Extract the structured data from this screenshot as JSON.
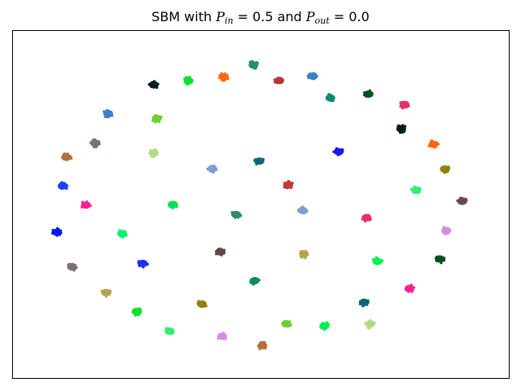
{
  "chart_data": {
    "type": "scatter",
    "title": "SBM with P_in = 0.5 and P_out = 0.0",
    "title_parts": {
      "prefix": "SBM with ",
      "p": "P",
      "in_sub": "in",
      "eq1": " = 0.5 and ",
      "out_sub": "out",
      "eq2": " = 0.0"
    },
    "xlabel": "",
    "ylabel": "",
    "xlim": [
      0,
      1
    ],
    "ylim": [
      0,
      1
    ],
    "axes_ticks": "hidden",
    "grid": false,
    "legend": "none",
    "clusters": [
      {
        "x": 0.485,
        "y": 0.902,
        "color": "#2a8f6a"
      },
      {
        "x": 0.537,
        "y": 0.857,
        "color": "#b8353a"
      },
      {
        "x": 0.605,
        "y": 0.87,
        "color": "#3e7fc8"
      },
      {
        "x": 0.425,
        "y": 0.868,
        "color": "#ff6a10"
      },
      {
        "x": 0.354,
        "y": 0.856,
        "color": "#10e030"
      },
      {
        "x": 0.284,
        "y": 0.845,
        "color": "#051c24"
      },
      {
        "x": 0.192,
        "y": 0.762,
        "color": "#3e7fc8"
      },
      {
        "x": 0.29,
        "y": 0.748,
        "color": "#70cc30"
      },
      {
        "x": 0.166,
        "y": 0.676,
        "color": "#7b7272"
      },
      {
        "x": 0.284,
        "y": 0.648,
        "color": "#b0dc80"
      },
      {
        "x": 0.108,
        "y": 0.636,
        "color": "#b07040"
      },
      {
        "x": 0.1,
        "y": 0.553,
        "color": "#2040ff"
      },
      {
        "x": 0.147,
        "y": 0.498,
        "color": "#ff2090"
      },
      {
        "x": 0.402,
        "y": 0.603,
        "color": "#7aa0cc"
      },
      {
        "x": 0.497,
        "y": 0.625,
        "color": "#086878"
      },
      {
        "x": 0.555,
        "y": 0.556,
        "color": "#c03838"
      },
      {
        "x": 0.64,
        "y": 0.807,
        "color": "#0d8a6a"
      },
      {
        "x": 0.717,
        "y": 0.818,
        "color": "#045020"
      },
      {
        "x": 0.79,
        "y": 0.788,
        "color": "#e83060"
      },
      {
        "x": 0.783,
        "y": 0.718,
        "color": "#051c24"
      },
      {
        "x": 0.657,
        "y": 0.652,
        "color": "#1818f0"
      },
      {
        "x": 0.848,
        "y": 0.673,
        "color": "#ff6a10"
      },
      {
        "x": 0.871,
        "y": 0.602,
        "color": "#928010"
      },
      {
        "x": 0.813,
        "y": 0.541,
        "color": "#30f070"
      },
      {
        "x": 0.906,
        "y": 0.509,
        "color": "#6a4a4a"
      },
      {
        "x": 0.323,
        "y": 0.5,
        "color": "#00e050"
      },
      {
        "x": 0.45,
        "y": 0.471,
        "color": "#2a8f6a"
      },
      {
        "x": 0.585,
        "y": 0.482,
        "color": "#7aa0cc"
      },
      {
        "x": 0.713,
        "y": 0.462,
        "color": "#e83060"
      },
      {
        "x": 0.874,
        "y": 0.425,
        "color": "#da8ae6"
      },
      {
        "x": 0.088,
        "y": 0.42,
        "color": "#0818f0"
      },
      {
        "x": 0.22,
        "y": 0.416,
        "color": "#10f070"
      },
      {
        "x": 0.735,
        "y": 0.336,
        "color": "#00f050"
      },
      {
        "x": 0.861,
        "y": 0.343,
        "color": "#045020"
      },
      {
        "x": 0.418,
        "y": 0.363,
        "color": "#604848"
      },
      {
        "x": 0.587,
        "y": 0.357,
        "color": "#b8a050"
      },
      {
        "x": 0.119,
        "y": 0.32,
        "color": "#7b7272"
      },
      {
        "x": 0.262,
        "y": 0.33,
        "color": "#2030e8"
      },
      {
        "x": 0.487,
        "y": 0.28,
        "color": "#0d8a6a"
      },
      {
        "x": 0.8,
        "y": 0.258,
        "color": "#ff2090"
      },
      {
        "x": 0.188,
        "y": 0.246,
        "color": "#b8a050"
      },
      {
        "x": 0.708,
        "y": 0.218,
        "color": "#086878"
      },
      {
        "x": 0.381,
        "y": 0.213,
        "color": "#928010"
      },
      {
        "x": 0.25,
        "y": 0.19,
        "color": "#10e030"
      },
      {
        "x": 0.551,
        "y": 0.156,
        "color": "#70cc30"
      },
      {
        "x": 0.628,
        "y": 0.15,
        "color": "#00f050"
      },
      {
        "x": 0.72,
        "y": 0.155,
        "color": "#b0dc80"
      },
      {
        "x": 0.316,
        "y": 0.135,
        "color": "#30f070"
      },
      {
        "x": 0.422,
        "y": 0.12,
        "color": "#da8ae6"
      },
      {
        "x": 0.503,
        "y": 0.093,
        "color": "#b07040"
      }
    ]
  }
}
